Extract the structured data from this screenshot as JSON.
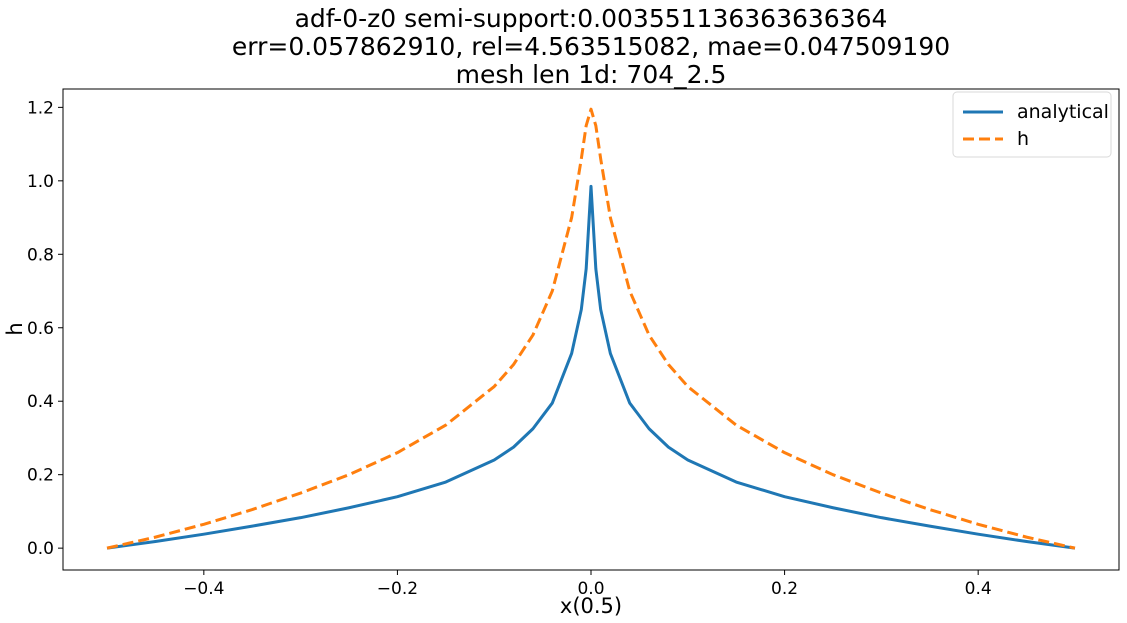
{
  "chart_data": {
    "type": "line",
    "title_lines": [
      "adf-0-z0  semi-support:0.003551136363636364",
      "err=0.057862910, rel=4.563515082, mae=0.047509190",
      "mesh len 1d: 704_2.5"
    ],
    "xlabel": "x(0.5)",
    "ylabel": "h",
    "xlim": [
      -0.5455,
      0.5455
    ],
    "ylim": [
      -0.0595,
      1.25
    ],
    "x_ticks": [
      -0.4,
      -0.2,
      0.0,
      0.2,
      0.4
    ],
    "x_tick_labels": [
      "−0.4",
      "−0.2",
      "0.0",
      "0.2",
      "0.4"
    ],
    "y_ticks": [
      0.0,
      0.2,
      0.4,
      0.6,
      0.8,
      1.0,
      1.2
    ],
    "y_tick_labels": [
      "0.0",
      "0.2",
      "0.4",
      "0.6",
      "0.8",
      "1.0",
      "1.2"
    ],
    "grid": false,
    "legend_position": "top-right",
    "series": [
      {
        "name": "analytical",
        "color": "#1f77b4",
        "dash": "solid",
        "x": [
          -0.5,
          -0.45,
          -0.4,
          -0.35,
          -0.3,
          -0.25,
          -0.2,
          -0.15,
          -0.1,
          -0.08,
          -0.06,
          -0.04,
          -0.02,
          -0.01,
          -0.005,
          0.0,
          0.005,
          0.01,
          0.02,
          0.04,
          0.06,
          0.08,
          0.1,
          0.15,
          0.2,
          0.25,
          0.3,
          0.35,
          0.4,
          0.45,
          0.5
        ],
        "y": [
          0.0,
          0.018,
          0.038,
          0.06,
          0.083,
          0.11,
          0.14,
          0.18,
          0.24,
          0.275,
          0.325,
          0.395,
          0.53,
          0.65,
          0.76,
          0.985,
          0.76,
          0.65,
          0.53,
          0.395,
          0.325,
          0.275,
          0.24,
          0.18,
          0.14,
          0.11,
          0.083,
          0.06,
          0.038,
          0.018,
          0.0
        ]
      },
      {
        "name": "h",
        "color": "#ff7f0e",
        "dash": "dashed",
        "x": [
          -0.5,
          -0.45,
          -0.4,
          -0.35,
          -0.3,
          -0.25,
          -0.2,
          -0.15,
          -0.1,
          -0.08,
          -0.06,
          -0.04,
          -0.02,
          -0.01,
          -0.005,
          0.0,
          0.005,
          0.01,
          0.02,
          0.04,
          0.06,
          0.08,
          0.1,
          0.15,
          0.2,
          0.25,
          0.3,
          0.35,
          0.4,
          0.45,
          0.5
        ],
        "y": [
          0.0,
          0.03,
          0.065,
          0.105,
          0.15,
          0.2,
          0.26,
          0.335,
          0.44,
          0.5,
          0.58,
          0.7,
          0.9,
          1.06,
          1.15,
          1.195,
          1.15,
          1.06,
          0.9,
          0.7,
          0.58,
          0.5,
          0.44,
          0.335,
          0.26,
          0.2,
          0.15,
          0.105,
          0.065,
          0.03,
          0.0
        ]
      }
    ]
  }
}
